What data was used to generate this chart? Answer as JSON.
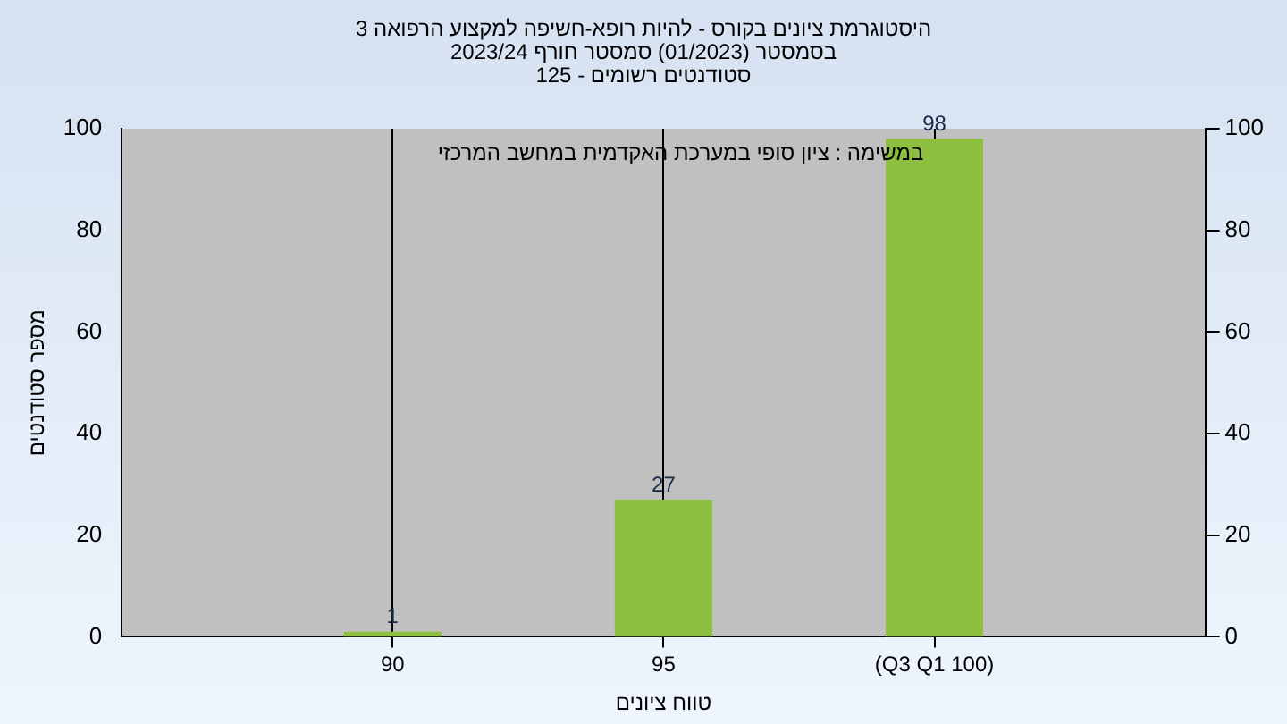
{
  "chart_data": {
    "type": "bar",
    "title": "היסטוגרמת ציונים בקורס - להיות רופא-חשיפה למקצוע הרפואה 3",
    "subtitle": "בסמסטר  (01/2023)  סמסטר חורף 2023/24\nסטודנטים רשומים - 125",
    "xlabel": "טווח ציונים",
    "ylabel": "מספר סטודנטים",
    "annotations": [
      "במשימה : ציון סופי במערכת האקדמית במחשב המרכזי"
    ],
    "categories": [
      "90",
      "95",
      "(Q3 Q1 100)"
    ],
    "values": [
      1,
      27,
      98
    ],
    "color": "#8fbf3f",
    "ylim": [
      0,
      100
    ],
    "yticks": [
      0,
      20,
      40,
      60,
      80,
      100
    ],
    "y2lim": [
      0,
      100
    ],
    "y2ticks": [
      0,
      20,
      40,
      60,
      80,
      100
    ],
    "grid": "x",
    "data_labels": true,
    "legend": false
  }
}
